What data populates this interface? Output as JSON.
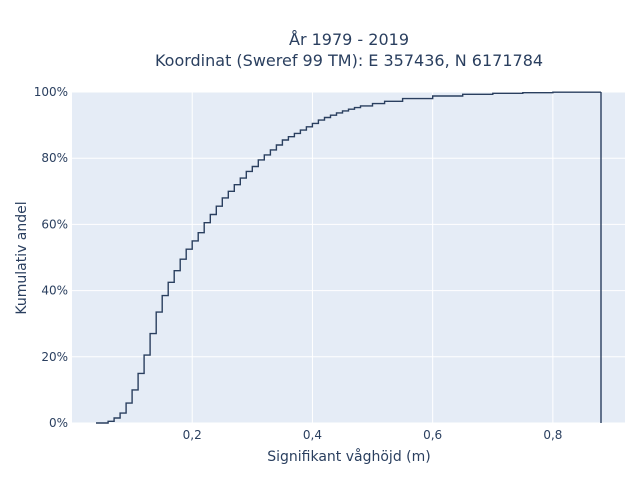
{
  "chart_data": {
    "type": "line",
    "mode": "ecdf-step",
    "title_line1": "År 1979 - 2019",
    "title_line2": "Koordinat (Sweref 99 TM): E 357436, N 6171784",
    "xlabel": "Signifikant våghöjd (m)",
    "ylabel": "Kumulativ andel",
    "xlim": [
      0.0,
      0.92
    ],
    "ylim": [
      0,
      100
    ],
    "x_ticks": [
      0.2,
      0.4,
      0.6,
      0.8
    ],
    "x_tick_labels": [
      "0,2",
      "0,4",
      "0,6",
      "0,8"
    ],
    "y_ticks": [
      0,
      20,
      40,
      60,
      80,
      100
    ],
    "y_tick_labels": [
      "0%",
      "20%",
      "40%",
      "60%",
      "80%",
      "100%"
    ],
    "grid": true,
    "background": "#e5ecf6",
    "line_color": "#2a3f5f",
    "series": [
      {
        "x": [
          0.04,
          0.06,
          0.07,
          0.08,
          0.09,
          0.1,
          0.11,
          0.12,
          0.13,
          0.14,
          0.15,
          0.16,
          0.17,
          0.18,
          0.19,
          0.2,
          0.21,
          0.22,
          0.23,
          0.24,
          0.25,
          0.26,
          0.27,
          0.28,
          0.29,
          0.3,
          0.31,
          0.32,
          0.33,
          0.34,
          0.35,
          0.36,
          0.37,
          0.38,
          0.39,
          0.4,
          0.41,
          0.42,
          0.43,
          0.44,
          0.45,
          0.46,
          0.47,
          0.48,
          0.5,
          0.52,
          0.55,
          0.6,
          0.65,
          0.7,
          0.75,
          0.8,
          0.88,
          0.88
        ],
        "y": [
          0,
          0.5,
          1.5,
          3,
          6,
          10,
          15,
          20.5,
          27,
          33.5,
          38.5,
          42.5,
          46,
          49.5,
          52.5,
          55,
          57.5,
          60.5,
          63,
          65.5,
          68,
          70,
          72,
          74,
          76,
          77.5,
          79.5,
          81,
          82.5,
          84,
          85.5,
          86.5,
          87.5,
          88.5,
          89.5,
          90.5,
          91.5,
          92.3,
          93,
          93.7,
          94.3,
          94.8,
          95.3,
          95.8,
          96.5,
          97.2,
          98,
          98.8,
          99.3,
          99.6,
          99.8,
          99.95,
          100,
          0
        ]
      }
    ]
  }
}
